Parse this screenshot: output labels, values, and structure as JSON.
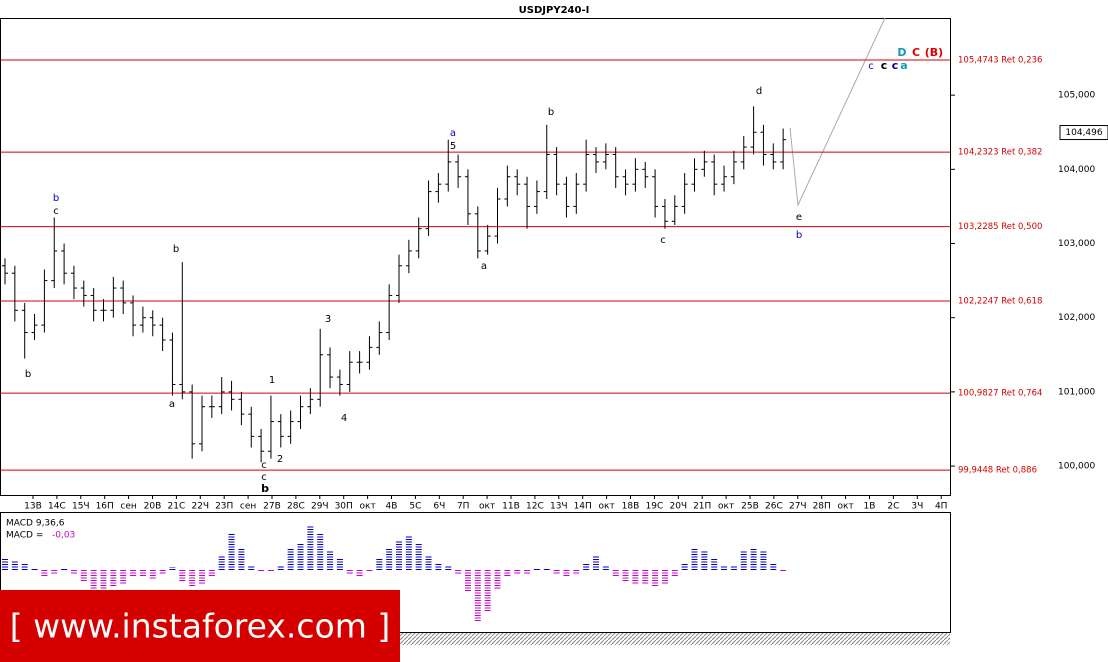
{
  "chart_data": {
    "type": "ohlc",
    "title": "USDJPY240-I",
    "ylim": [
      99.61,
      106.04
    ],
    "yticks": [
      {
        "value": 100,
        "label": "100,000"
      },
      {
        "value": 101,
        "label": "101,000"
      },
      {
        "value": 102,
        "label": "102,000"
      },
      {
        "value": 103,
        "label": "103,000"
      },
      {
        "value": 104,
        "label": "104,000"
      },
      {
        "value": 105,
        "label": "105,000"
      }
    ],
    "x_labels": [
      "13В",
      "14С",
      "15Ч",
      "16П",
      "сен",
      "20В",
      "21С",
      "22Ч",
      "23П",
      "сен",
      "27В",
      "28С",
      "29Ч",
      "30П",
      "окт",
      "4В",
      "5С",
      "6Ч",
      "7П",
      "окт",
      "11В",
      "12С",
      "13Ч",
      "14П",
      "окт",
      "18В",
      "19С",
      "20Ч",
      "21П",
      "окт",
      "25В",
      "26С",
      "27Ч",
      "28П",
      "окт",
      "1В",
      "2С",
      "3Ч",
      "4П"
    ],
    "levels": [
      {
        "value": 105.4743,
        "label": "105,4743 Ret 0,236"
      },
      {
        "value": 104.2323,
        "label": "104,2323 Ret 0,382"
      },
      {
        "value": 103.2285,
        "label": "103,2285 Ret 0,500"
      },
      {
        "value": 102.2247,
        "label": "102,2247 Ret 0,618"
      },
      {
        "value": 100.9827,
        "label": "100,9827 Ret 0,764"
      },
      {
        "value": 99.9448,
        "label": "99,9448 Ret 0,886"
      }
    ],
    "last_price": {
      "value": 104.496,
      "label": "104,496"
    },
    "bar_color": "#000000",
    "level_color": "#d40000",
    "bars": [
      [
        102.7,
        102.8,
        102.45,
        102.6
      ],
      [
        102.6,
        102.7,
        101.95,
        102.1
      ],
      [
        102.1,
        102.2,
        101.45,
        101.8
      ],
      [
        101.8,
        102.05,
        101.7,
        101.9
      ],
      [
        101.9,
        102.65,
        101.8,
        102.5
      ],
      [
        102.5,
        103.35,
        102.4,
        102.9
      ],
      [
        102.9,
        103.0,
        102.45,
        102.6
      ],
      [
        102.6,
        102.7,
        102.25,
        102.4
      ],
      [
        102.4,
        102.5,
        102.15,
        102.3
      ],
      [
        102.3,
        102.4,
        101.95,
        102.1
      ],
      [
        102.1,
        102.25,
        101.95,
        102.1
      ],
      [
        102.1,
        102.55,
        102.0,
        102.4
      ],
      [
        102.4,
        102.5,
        102.05,
        102.2
      ],
      [
        102.2,
        102.3,
        101.75,
        101.9
      ],
      [
        101.9,
        102.15,
        101.8,
        102.0
      ],
      [
        102.0,
        102.1,
        101.75,
        101.9
      ],
      [
        101.9,
        102.0,
        101.55,
        101.7
      ],
      [
        101.7,
        101.8,
        100.95,
        101.1
      ],
      [
        101.1,
        102.75,
        100.9,
        101.0
      ],
      [
        101.0,
        101.1,
        100.1,
        100.3
      ],
      [
        100.3,
        100.95,
        100.2,
        100.8
      ],
      [
        100.8,
        100.95,
        100.65,
        100.8
      ],
      [
        100.8,
        101.2,
        100.7,
        101.0
      ],
      [
        101.0,
        101.15,
        100.75,
        100.9
      ],
      [
        100.9,
        101.0,
        100.55,
        100.7
      ],
      [
        100.7,
        100.8,
        100.25,
        100.4
      ],
      [
        100.4,
        100.5,
        100.05,
        100.2
      ],
      [
        100.2,
        100.95,
        100.1,
        100.6
      ],
      [
        100.6,
        100.7,
        100.25,
        100.4
      ],
      [
        100.4,
        100.75,
        100.3,
        100.6
      ],
      [
        100.6,
        100.95,
        100.5,
        100.8
      ],
      [
        100.8,
        101.05,
        100.7,
        100.9
      ],
      [
        100.9,
        101.85,
        100.8,
        101.5
      ],
      [
        101.5,
        101.6,
        101.05,
        101.2
      ],
      [
        101.2,
        101.3,
        100.95,
        101.1
      ],
      [
        101.1,
        101.55,
        101.0,
        101.4
      ],
      [
        101.4,
        101.55,
        101.25,
        101.4
      ],
      [
        101.4,
        101.75,
        101.3,
        101.6
      ],
      [
        101.6,
        101.95,
        101.5,
        101.8
      ],
      [
        101.8,
        102.45,
        101.7,
        102.3
      ],
      [
        102.3,
        102.85,
        102.2,
        102.7
      ],
      [
        102.7,
        103.05,
        102.6,
        102.9
      ],
      [
        102.9,
        103.35,
        102.8,
        103.2
      ],
      [
        103.2,
        103.85,
        103.1,
        103.7
      ],
      [
        103.7,
        103.95,
        103.55,
        103.8
      ],
      [
        103.8,
        104.4,
        103.7,
        104.1
      ],
      [
        104.1,
        104.2,
        103.75,
        103.9
      ],
      [
        103.9,
        104.0,
        103.25,
        103.4
      ],
      [
        103.4,
        103.5,
        102.8,
        102.9
      ],
      [
        102.9,
        103.25,
        102.85,
        103.1
      ],
      [
        103.1,
        103.75,
        103.0,
        103.6
      ],
      [
        103.6,
        104.05,
        103.5,
        103.9
      ],
      [
        103.9,
        104.0,
        103.65,
        103.8
      ],
      [
        103.8,
        103.9,
        103.2,
        103.5
      ],
      [
        103.5,
        103.85,
        103.4,
        103.7
      ],
      [
        103.7,
        104.6,
        103.6,
        104.2
      ],
      [
        104.2,
        104.3,
        103.65,
        103.8
      ],
      [
        103.8,
        103.9,
        103.35,
        103.5
      ],
      [
        103.5,
        103.95,
        103.4,
        103.8
      ],
      [
        103.8,
        104.4,
        103.7,
        104.2
      ],
      [
        104.2,
        104.3,
        103.95,
        104.1
      ],
      [
        104.1,
        104.35,
        104.0,
        104.2
      ],
      [
        104.2,
        104.3,
        103.75,
        103.9
      ],
      [
        103.9,
        104.0,
        103.65,
        103.8
      ],
      [
        103.8,
        104.15,
        103.7,
        104.0
      ],
      [
        104.0,
        104.1,
        103.75,
        103.9
      ],
      [
        103.9,
        104.0,
        103.35,
        103.5
      ],
      [
        103.5,
        103.6,
        103.2,
        103.3
      ],
      [
        103.3,
        103.65,
        103.25,
        103.5
      ],
      [
        103.5,
        103.95,
        103.4,
        103.8
      ],
      [
        103.8,
        104.15,
        103.7,
        104.0
      ],
      [
        104.0,
        104.25,
        103.9,
        104.1
      ],
      [
        104.1,
        104.2,
        103.65,
        103.8
      ],
      [
        103.8,
        104.05,
        103.7,
        103.9
      ],
      [
        103.9,
        104.25,
        103.8,
        104.1
      ],
      [
        104.1,
        104.45,
        104.0,
        104.3
      ],
      [
        104.3,
        104.85,
        104.2,
        104.5
      ],
      [
        104.5,
        104.6,
        104.05,
        104.2
      ],
      [
        104.2,
        104.35,
        104.0,
        104.1
      ],
      [
        104.1,
        104.55,
        104.0,
        104.4
      ]
    ],
    "annotations": [
      "b",
      "c",
      "b",
      "b",
      "a",
      "c",
      "c",
      "b",
      "1",
      "2",
      "3",
      "4",
      "a",
      "5",
      "b",
      "a",
      "c",
      "d",
      "e",
      "b",
      "D",
      "C",
      "(B)",
      "c",
      "c",
      "c",
      "a"
    ],
    "macd": {
      "title": "MACD 9,36,6",
      "current_label": "MACD =",
      "current": {
        "value": -0.03,
        "label": "-0,03"
      },
      "pos_color": "#0000cc",
      "neg_color": "#cc00cc",
      "values": [
        0.15,
        0.12,
        0.08,
        0.02,
        -0.08,
        -0.06,
        0.03,
        -0.05,
        -0.15,
        -0.25,
        -0.28,
        -0.22,
        -0.18,
        -0.1,
        -0.08,
        -0.12,
        -0.05,
        0.04,
        -0.15,
        -0.22,
        -0.18,
        -0.08,
        0.2,
        0.5,
        0.3,
        0.05,
        -0.02,
        -0.03,
        0.05,
        0.3,
        0.35,
        0.6,
        0.5,
        0.25,
        0.15,
        -0.05,
        -0.08,
        -0.02,
        0.15,
        0.3,
        0.4,
        0.45,
        0.35,
        0.2,
        0.1,
        0.05,
        -0.05,
        -0.3,
        -0.7,
        -0.55,
        -0.25,
        -0.1,
        -0.05,
        -0.05,
        0.02,
        0.03,
        -0.05,
        -0.08,
        -0.05,
        0.1,
        0.2,
        0.05,
        -0.1,
        -0.15,
        -0.18,
        -0.2,
        -0.22,
        -0.2,
        -0.1,
        0.1,
        0.3,
        0.25,
        0.15,
        0.05,
        0.05,
        0.25,
        0.3,
        0.25,
        0.1,
        -0.03
      ]
    },
    "watermark": "[ www.instaforex.com ]"
  }
}
